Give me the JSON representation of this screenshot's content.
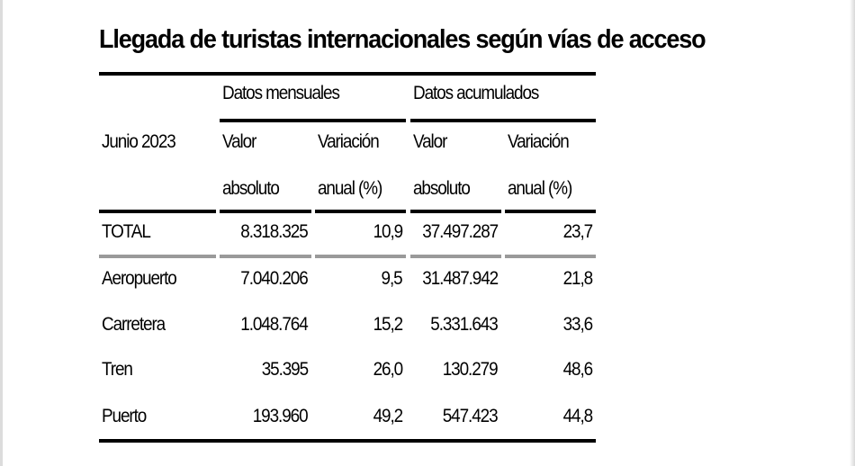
{
  "title": "Llegada de turistas internacionales según vías de acceso",
  "table": {
    "period_label": "Junio 2023",
    "group_headers": [
      "Datos mensuales",
      "Datos acumulados"
    ],
    "column_headers": [
      {
        "line1": "Valor",
        "line2": "absoluto"
      },
      {
        "line1": "Variación",
        "line2": "anual (%)"
      },
      {
        "line1": "Valor",
        "line2": "absoluto"
      },
      {
        "line1": "Variación",
        "line2": "anual (%)"
      }
    ],
    "total_row": {
      "label": "TOTAL",
      "values": [
        "8.318.325",
        "10,9",
        "37.497.287",
        "23,7"
      ]
    },
    "rows": [
      {
        "label": "Aeropuerto",
        "values": [
          "7.040.206",
          "9,5",
          "31.487.942",
          "21,8"
        ]
      },
      {
        "label": "Carretera",
        "values": [
          "1.048.764",
          "15,2",
          "5.331.643",
          "33,6"
        ]
      },
      {
        "label": "Tren",
        "values": [
          "35.395",
          "26,0",
          "130.279",
          "48,6"
        ]
      },
      {
        "label": "Puerto",
        "values": [
          "193.960",
          "49,2",
          "547.423",
          "44,8"
        ]
      }
    ]
  }
}
